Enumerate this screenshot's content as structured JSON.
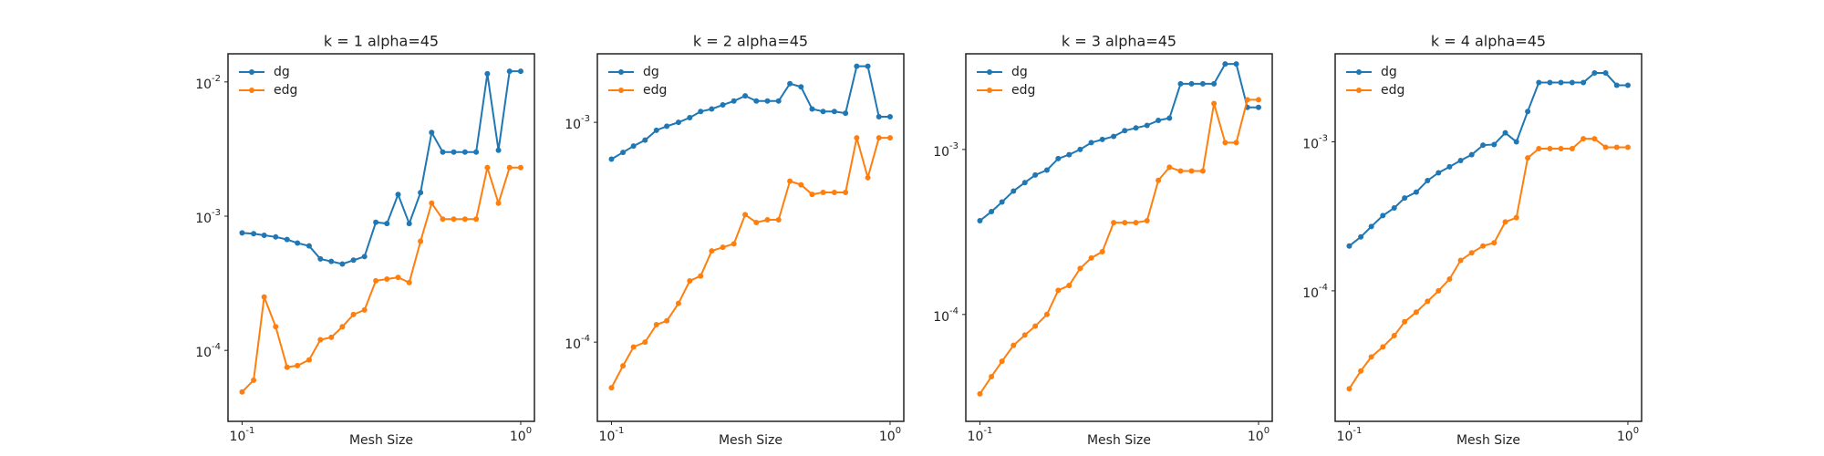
{
  "chart_data": [
    {
      "type": "line",
      "title": "k = 1 alpha=45",
      "xlabel": "Mesh Size",
      "xscale": "log",
      "yscale": "log",
      "legend": "upper left",
      "x": [
        0.1,
        0.11,
        0.12,
        0.132,
        0.145,
        0.158,
        0.174,
        0.191,
        0.209,
        0.229,
        0.251,
        0.275,
        0.302,
        0.331,
        0.363,
        0.398,
        0.437,
        0.479,
        0.525,
        0.575,
        0.631,
        0.692,
        0.759,
        0.832,
        0.912,
        1.0
      ],
      "series": [
        {
          "name": "dg",
          "color": "#1f77b4",
          "values": [
            0.00075,
            0.00074,
            0.00072,
            0.0007,
            0.00067,
            0.00063,
            0.0006,
            0.00048,
            0.00046,
            0.00044,
            0.00047,
            0.0005,
            0.0009,
            0.00088,
            0.00145,
            0.00088,
            0.0015,
            0.0042,
            0.003,
            0.003,
            0.003,
            0.003,
            0.0115,
            0.0031,
            0.012,
            0.012
          ]
        },
        {
          "name": "edg",
          "color": "#ff7f0e",
          "values": [
            4.9e-05,
            6e-05,
            0.00025,
            0.00015,
            7.5e-05,
            7.7e-05,
            8.5e-05,
            0.00012,
            0.000125,
            0.00015,
            0.000185,
            0.0002,
            0.00033,
            0.00034,
            0.00035,
            0.00032,
            0.00065,
            0.00125,
            0.00095,
            0.00095,
            0.00095,
            0.00095,
            0.0023,
            0.00125,
            0.0023,
            0.0023
          ]
        }
      ],
      "xlim": [
        0.089,
        1.12
      ],
      "ylim": [
        2.96e-05,
        0.0162
      ],
      "xticks": [
        {
          "value": 0.1,
          "label": "10^-1"
        },
        {
          "value": 1,
          "label": "10^0"
        }
      ],
      "yticks": [
        {
          "value": 0.01,
          "label": "10^-2"
        },
        {
          "value": 0.001,
          "label": "10^-3"
        },
        {
          "value": 0.0001,
          "label": "10^-4"
        }
      ]
    },
    {
      "type": "line",
      "title": "k = 2 alpha=45",
      "xlabel": "Mesh Size",
      "xscale": "log",
      "yscale": "log",
      "legend": "upper left",
      "x": [
        0.1,
        0.11,
        0.12,
        0.132,
        0.145,
        0.158,
        0.174,
        0.191,
        0.209,
        0.229,
        0.251,
        0.275,
        0.302,
        0.331,
        0.363,
        0.398,
        0.437,
        0.479,
        0.525,
        0.575,
        0.631,
        0.692,
        0.759,
        0.832,
        0.912,
        1.0
      ],
      "series": [
        {
          "name": "dg",
          "color": "#1f77b4",
          "values": [
            0.00068,
            0.00073,
            0.00078,
            0.00083,
            0.00092,
            0.00096,
            0.001,
            0.00105,
            0.00112,
            0.00115,
            0.0012,
            0.00125,
            0.00132,
            0.00125,
            0.00125,
            0.00125,
            0.0015,
            0.00145,
            0.00115,
            0.00112,
            0.00112,
            0.0011,
            0.0018,
            0.0018,
            0.00106,
            0.00106
          ]
        },
        {
          "name": "edg",
          "color": "#ff7f0e",
          "values": [
            6.2e-05,
            7.8e-05,
            9.5e-05,
            0.0001,
            0.00012,
            0.000125,
            0.00015,
            0.00019,
            0.0002,
            0.00026,
            0.00027,
            0.00028,
            0.00038,
            0.00035,
            0.00036,
            0.00036,
            0.00054,
            0.00052,
            0.00047,
            0.00048,
            0.00048,
            0.00048,
            0.00085,
            0.00056,
            0.00085,
            0.00085
          ]
        }
      ],
      "xlim": [
        0.089,
        1.12
      ],
      "ylim": [
        4.36e-05,
        0.00205
      ],
      "xticks": [
        {
          "value": 0.1,
          "label": "10^-1"
        },
        {
          "value": 1,
          "label": "10^0"
        }
      ],
      "yticks": [
        {
          "value": 0.001,
          "label": "10^-3"
        },
        {
          "value": 0.0001,
          "label": "10^-4"
        }
      ]
    },
    {
      "type": "line",
      "title": "k = 3 alpha=45",
      "xlabel": "Mesh Size",
      "xscale": "log",
      "yscale": "log",
      "legend": "upper left",
      "x": [
        0.1,
        0.11,
        0.12,
        0.132,
        0.145,
        0.158,
        0.174,
        0.191,
        0.209,
        0.229,
        0.251,
        0.275,
        0.302,
        0.331,
        0.363,
        0.398,
        0.437,
        0.479,
        0.525,
        0.575,
        0.631,
        0.692,
        0.759,
        0.832,
        0.912,
        1.0
      ],
      "series": [
        {
          "name": "dg",
          "color": "#1f77b4",
          "values": [
            0.00037,
            0.00042,
            0.00048,
            0.00056,
            0.00063,
            0.0007,
            0.00075,
            0.00088,
            0.00093,
            0.001,
            0.0011,
            0.00115,
            0.0012,
            0.0013,
            0.00135,
            0.0014,
            0.0015,
            0.00155,
            0.0025,
            0.0025,
            0.0025,
            0.0025,
            0.0033,
            0.0033,
            0.0018,
            0.0018
          ]
        },
        {
          "name": "edg",
          "color": "#ff7f0e",
          "values": [
            3.3e-05,
            4.2e-05,
            5.2e-05,
            6.5e-05,
            7.5e-05,
            8.5e-05,
            0.0001,
            0.00014,
            0.00015,
            0.00019,
            0.00022,
            0.00024,
            0.00036,
            0.00036,
            0.00036,
            0.00037,
            0.00065,
            0.00078,
            0.00074,
            0.00074,
            0.00074,
            0.0019,
            0.0011,
            0.0011,
            0.002,
            0.002
          ]
        }
      ],
      "xlim": [
        0.089,
        1.12
      ],
      "ylim": [
        2.25e-05,
        0.0038
      ],
      "xticks": [
        {
          "value": 0.1,
          "label": "10^-1"
        },
        {
          "value": 1,
          "label": "10^0"
        }
      ],
      "yticks": [
        {
          "value": 0.001,
          "label": "10^-3"
        },
        {
          "value": 0.0001,
          "label": "10^-4"
        }
      ]
    },
    {
      "type": "line",
      "title": "k = 4 alpha=45",
      "xlabel": "Mesh Size",
      "xscale": "log",
      "yscale": "log",
      "legend": "upper left",
      "x": [
        0.1,
        0.11,
        0.12,
        0.132,
        0.145,
        0.158,
        0.174,
        0.191,
        0.209,
        0.229,
        0.251,
        0.275,
        0.302,
        0.331,
        0.363,
        0.398,
        0.437,
        0.479,
        0.525,
        0.575,
        0.631,
        0.692,
        0.759,
        0.832,
        0.912,
        1.0
      ],
      "series": [
        {
          "name": "dg",
          "color": "#1f77b4",
          "values": [
            0.0002,
            0.00023,
            0.00027,
            0.00032,
            0.00036,
            0.00042,
            0.00046,
            0.00055,
            0.00062,
            0.00068,
            0.00075,
            0.00082,
            0.00095,
            0.00096,
            0.00115,
            0.001,
            0.0016,
            0.0025,
            0.0025,
            0.0025,
            0.0025,
            0.0025,
            0.0029,
            0.0029,
            0.0024,
            0.0024
          ]
        },
        {
          "name": "edg",
          "color": "#ff7f0e",
          "values": [
            2.2e-05,
            2.9e-05,
            3.6e-05,
            4.2e-05,
            5e-05,
            6.2e-05,
            7.2e-05,
            8.5e-05,
            0.0001,
            0.00012,
            0.00016,
            0.00018,
            0.0002,
            0.00021,
            0.00029,
            0.00031,
            0.00078,
            0.0009,
            0.0009,
            0.0009,
            0.0009,
            0.00105,
            0.00105,
            0.00092,
            0.00092,
            0.00092
          ]
        }
      ],
      "xlim": [
        0.089,
        1.12
      ],
      "ylim": [
        1.33e-05,
        0.0039
      ],
      "xticks": [
        {
          "value": 0.1,
          "label": "10^-1"
        },
        {
          "value": 1,
          "label": "10^0"
        }
      ],
      "yticks": [
        {
          "value": 0.001,
          "label": "10^-3"
        },
        {
          "value": 0.0001,
          "label": "10^-4"
        }
      ]
    }
  ]
}
